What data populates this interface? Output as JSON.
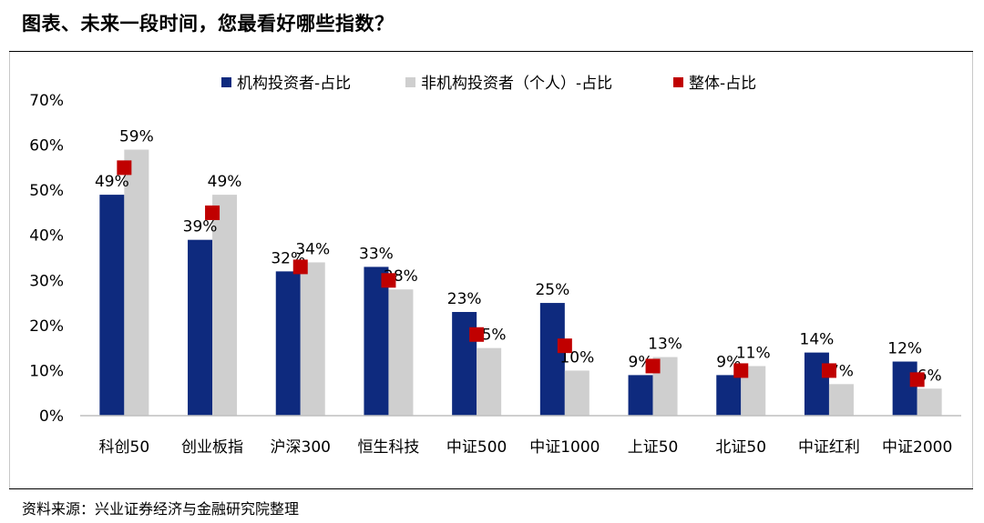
{
  "title": "图表、未来一段时间，您最看好哪些指数？",
  "source": "资料来源：兴业证券经济与金融研究院整理",
  "colors": {
    "institutional": "#0e2a7e",
    "individual": "#cfcfcf",
    "overall": "#c00000"
  },
  "chart_data": {
    "type": "bar",
    "categories": [
      "科创50",
      "创业板指",
      "沪深300",
      "恒生科技",
      "中证500",
      "中证1000",
      "上证50",
      "北证50",
      "中证红利",
      "中证2000"
    ],
    "series": [
      {
        "name": "机构投资者-占比",
        "kind": "bar",
        "values": [
          49,
          39,
          32,
          33,
          23,
          25,
          9,
          9,
          14,
          12
        ],
        "labels": [
          "49%",
          "39%",
          "32%",
          "33%",
          "23%",
          "25%",
          "9%",
          "9%",
          "14%",
          "12%"
        ]
      },
      {
        "name": "非机构投资者（个人）-占比",
        "kind": "bar",
        "values": [
          59,
          49,
          34,
          28,
          15,
          10,
          13,
          11,
          7,
          6
        ],
        "labels": [
          "59%",
          "49%",
          "34%",
          "28%",
          "15%",
          "10%",
          "13%",
          "11%",
          "7%",
          "6%"
        ]
      },
      {
        "name": "整体-占比",
        "kind": "marker",
        "values": [
          55,
          45,
          33,
          30,
          18,
          15.5,
          11,
          10,
          10,
          8
        ]
      }
    ],
    "y_ticks": [
      "0%",
      "10%",
      "20%",
      "30%",
      "40%",
      "50%",
      "60%",
      "70%"
    ],
    "ylim": [
      0,
      70
    ],
    "grid": false,
    "legend": "top"
  }
}
